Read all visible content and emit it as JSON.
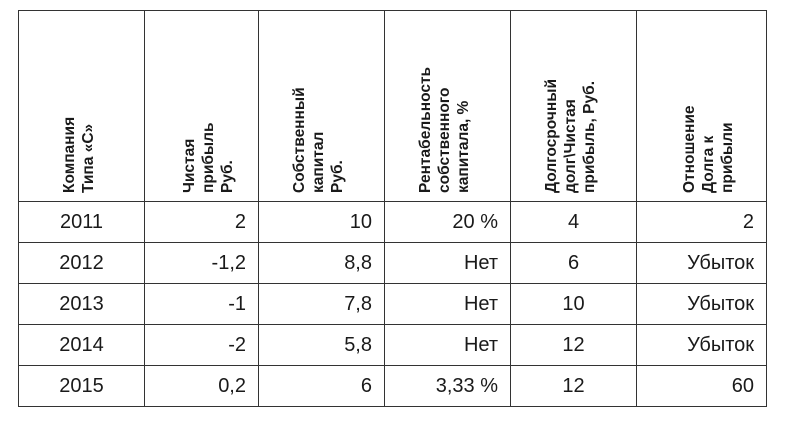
{
  "headers": [
    "Компания\nТипа «С»",
    "Чистая прибыль\nРуб.",
    "Собственный\nкапитал\nРуб.",
    "Рентабельность\nсобственного\nкапитала, %",
    "Долгосрочный\nдолг\\Чистая\nприбыль, Руб.",
    "Отношение\nДолга к прибыли"
  ],
  "rows": [
    [
      "2011",
      "2",
      "10",
      "20 %",
      "4",
      "2"
    ],
    [
      "2012",
      "-1,2",
      "8,8",
      "Нет",
      "6",
      "Убыток"
    ],
    [
      "2013",
      "-1",
      "7,8",
      "Нет",
      "10",
      "Убыток"
    ],
    [
      "2014",
      "-2",
      "5,8",
      "Нет",
      "12",
      "Убыток"
    ],
    [
      "2015",
      "0,2",
      "6",
      "3,33 %",
      "12",
      "60"
    ]
  ]
}
